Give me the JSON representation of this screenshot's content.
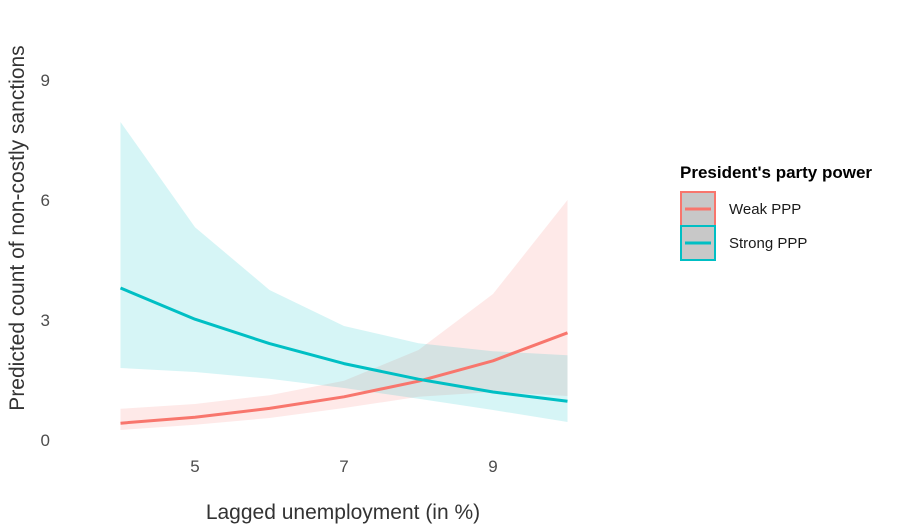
{
  "chart_data": {
    "type": "line",
    "title": "",
    "xlabel": "Lagged unemployment (in %)",
    "ylabel": "Predicted count of non-costly sanctions",
    "xlim": [
      3.9,
      10.1
    ],
    "ylim": [
      -0.1,
      10.5
    ],
    "x_ticks": [
      5,
      7,
      9
    ],
    "y_ticks": [
      0,
      3,
      6,
      9
    ],
    "grid": false,
    "legend_title": "President's party power",
    "legend_position": "right",
    "series": [
      {
        "name": "Weak PPP",
        "color": "#F8766D",
        "x": [
          4,
          5,
          6,
          7,
          8,
          9,
          10
        ],
        "y": [
          0.42,
          0.57,
          0.79,
          1.08,
          1.47,
          1.98,
          2.68
        ],
        "lower": [
          0.25,
          0.38,
          0.55,
          0.8,
          1.08,
          1.2,
          1.1
        ],
        "upper": [
          0.78,
          0.9,
          1.12,
          1.48,
          2.25,
          3.65,
          6.0
        ]
      },
      {
        "name": "Strong PPP",
        "color": "#00BFC4",
        "x": [
          4,
          5,
          6,
          7,
          8,
          9,
          10
        ],
        "y": [
          3.8,
          3.02,
          2.41,
          1.91,
          1.52,
          1.2,
          0.97
        ],
        "lower": [
          1.8,
          1.7,
          1.53,
          1.3,
          1.03,
          0.75,
          0.45
        ],
        "upper": [
          7.95,
          5.32,
          3.75,
          2.85,
          2.42,
          2.22,
          2.12
        ]
      }
    ]
  }
}
